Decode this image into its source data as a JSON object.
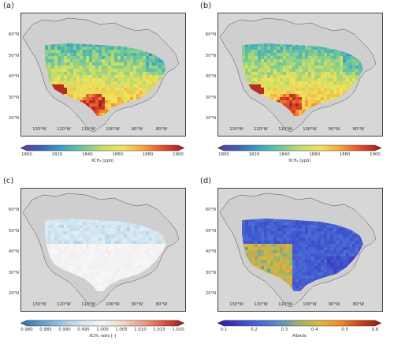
{
  "panels": [
    {
      "id": "a",
      "letter": "(a)",
      "lat_labels": [
        "60°N",
        "50°N",
        "40°N",
        "30°N",
        "20°N"
      ],
      "lon_labels": [
        "130°W",
        "120°W",
        "110°W",
        "100°W",
        "90°W",
        "80°W"
      ],
      "colorbar": {
        "ticks": [
          "1800",
          "1820",
          "1840",
          "1860",
          "1880",
          "1900"
        ],
        "label": "XCH₄ [ppb]",
        "colormap": "spectral_r"
      },
      "field": "xch4"
    },
    {
      "id": "b",
      "letter": "(b)",
      "lat_labels": [
        "60°N",
        "50°N",
        "40°N",
        "30°N",
        "20°N"
      ],
      "lon_labels": [
        "130°W",
        "120°W",
        "110°W",
        "100°W",
        "90°W",
        "80°W"
      ],
      "colorbar": {
        "ticks": [
          "1800",
          "1820",
          "1840",
          "1860",
          "1880",
          "1900"
        ],
        "label": "XCH₄ [ppb]",
        "colormap": "spectral_r"
      },
      "field": "xch4"
    },
    {
      "id": "c",
      "letter": "(c)",
      "lat_labels": [
        "60°N",
        "50°N",
        "40°N",
        "30°N",
        "20°N"
      ],
      "lon_labels": [
        "130°W",
        "120°W",
        "110°W",
        "100°W",
        "90°W",
        "80°W"
      ],
      "colorbar": {
        "ticks": [
          "0.980",
          "0.985",
          "0.990",
          "0.995",
          "1.000",
          "1.005",
          "1.010",
          "1.015",
          "1.020"
        ],
        "label": "XCH₄ ratio [-]",
        "colormap": "rdbu_r"
      },
      "field": "ratio"
    },
    {
      "id": "d",
      "letter": "(d)",
      "lat_labels": [
        "60°N",
        "50°N",
        "40°N",
        "30°N",
        "20°N"
      ],
      "lon_labels": [
        "130°W",
        "120°W",
        "110°W",
        "100°W",
        "90°W",
        "80°W"
      ],
      "colorbar": {
        "ticks": [
          "0.1",
          "0.2",
          "0.3",
          "0.4",
          "0.5",
          "0.6"
        ],
        "label": "Albedo",
        "colormap": "plasma"
      },
      "field": "albedo"
    }
  ],
  "colors": {
    "background_land": "#d7d7d7",
    "spectral_r": [
      "#5e3c99",
      "#3a62b5",
      "#39a3c4",
      "#6cc59f",
      "#c2dc6a",
      "#f3e35a",
      "#f6a23b",
      "#e24a2c",
      "#9a1a1a"
    ],
    "rdbu_r": [
      "#2a6db3",
      "#5c9bcd",
      "#9cc5e2",
      "#d4e6f2",
      "#f7f7f7",
      "#f6d5c6",
      "#ee9b7f",
      "#d8563f",
      "#a4161f"
    ],
    "plasma": [
      "#2a1d8c",
      "#3d40c6",
      "#4668d4",
      "#5b8dc9",
      "#9db26a",
      "#e0b73c",
      "#f08a2a",
      "#c9421b",
      "#8a1a10"
    ]
  }
}
